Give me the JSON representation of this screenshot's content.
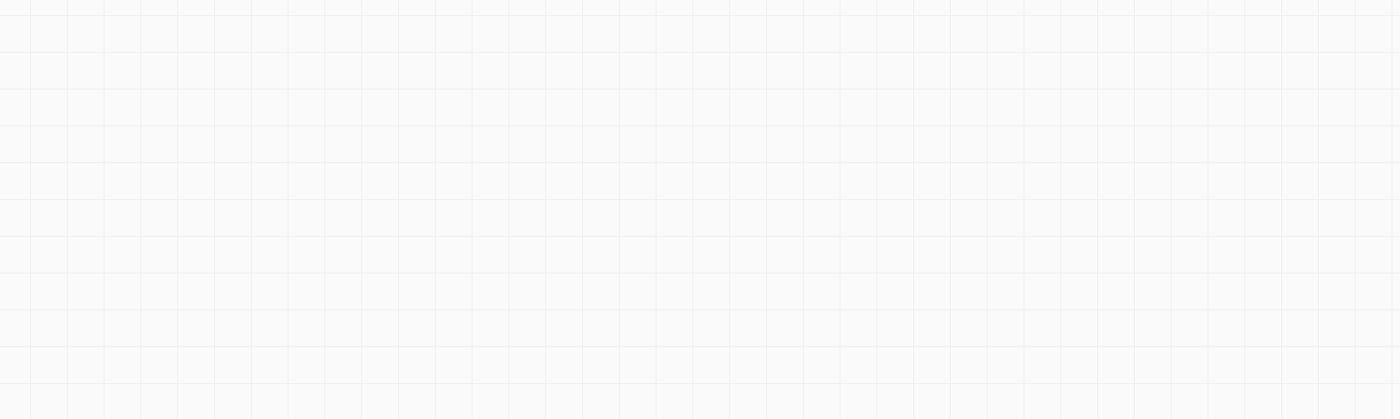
{
  "canvas": {
    "background_color": "#fafafa",
    "grid_line_color": "#f0f0f0",
    "grid_visible": true
  }
}
